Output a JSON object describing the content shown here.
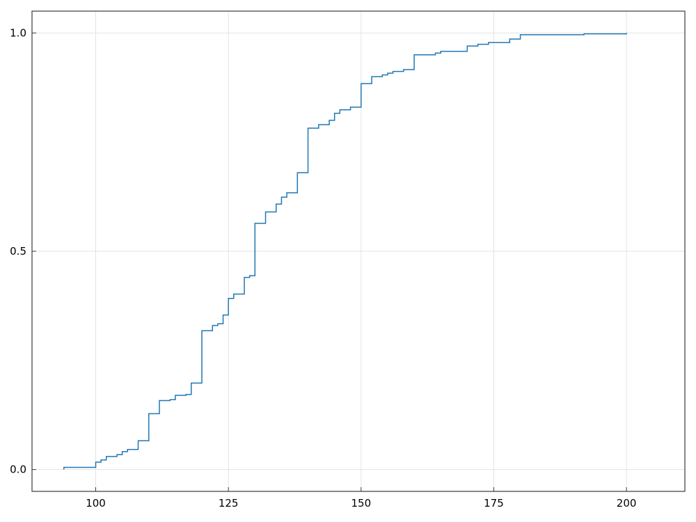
{
  "chart_data": {
    "type": "line",
    "style": "ecdf-step",
    "title": "",
    "xlabel": "",
    "ylabel": "",
    "xlim": [
      88,
      211
    ],
    "ylim": [
      -0.05,
      1.05
    ],
    "grid": true,
    "legend": "none",
    "colors": {
      "line": "#1f77b4",
      "grid": "#e3e3e3",
      "frame": "#3a3a3a"
    },
    "x_ticks": [
      100,
      125,
      150,
      175,
      200
    ],
    "x_tick_labels": [
      "100",
      "125",
      "150",
      "175",
      "200"
    ],
    "y_ticks": [
      0.0,
      0.5,
      1.0
    ],
    "y_tick_labels": [
      "0.0",
      "0.5",
      "1.0"
    ],
    "series": [
      {
        "x": [
          94,
          100,
          101,
          102,
          104,
          105,
          106,
          108,
          110,
          112,
          114,
          115,
          117,
          118,
          120,
          122,
          123,
          124,
          125,
          126,
          128,
          129,
          130,
          132,
          134,
          135,
          136,
          138,
          140,
          142,
          144,
          145,
          146,
          148,
          150,
          152,
          154,
          155,
          156,
          158,
          160,
          164,
          165,
          170,
          172,
          174,
          178,
          180,
          192,
          200
        ],
        "y": [
          0.005,
          0.017,
          0.022,
          0.03,
          0.034,
          0.041,
          0.046,
          0.066,
          0.128,
          0.158,
          0.16,
          0.17,
          0.172,
          0.198,
          0.318,
          0.33,
          0.334,
          0.354,
          0.392,
          0.402,
          0.44,
          0.444,
          0.564,
          0.59,
          0.608,
          0.624,
          0.634,
          0.68,
          0.782,
          0.79,
          0.8,
          0.816,
          0.824,
          0.83,
          0.884,
          0.9,
          0.904,
          0.908,
          0.912,
          0.916,
          0.95,
          0.954,
          0.958,
          0.97,
          0.974,
          0.978,
          0.986,
          0.996,
          0.998,
          1.0
        ]
      }
    ]
  }
}
